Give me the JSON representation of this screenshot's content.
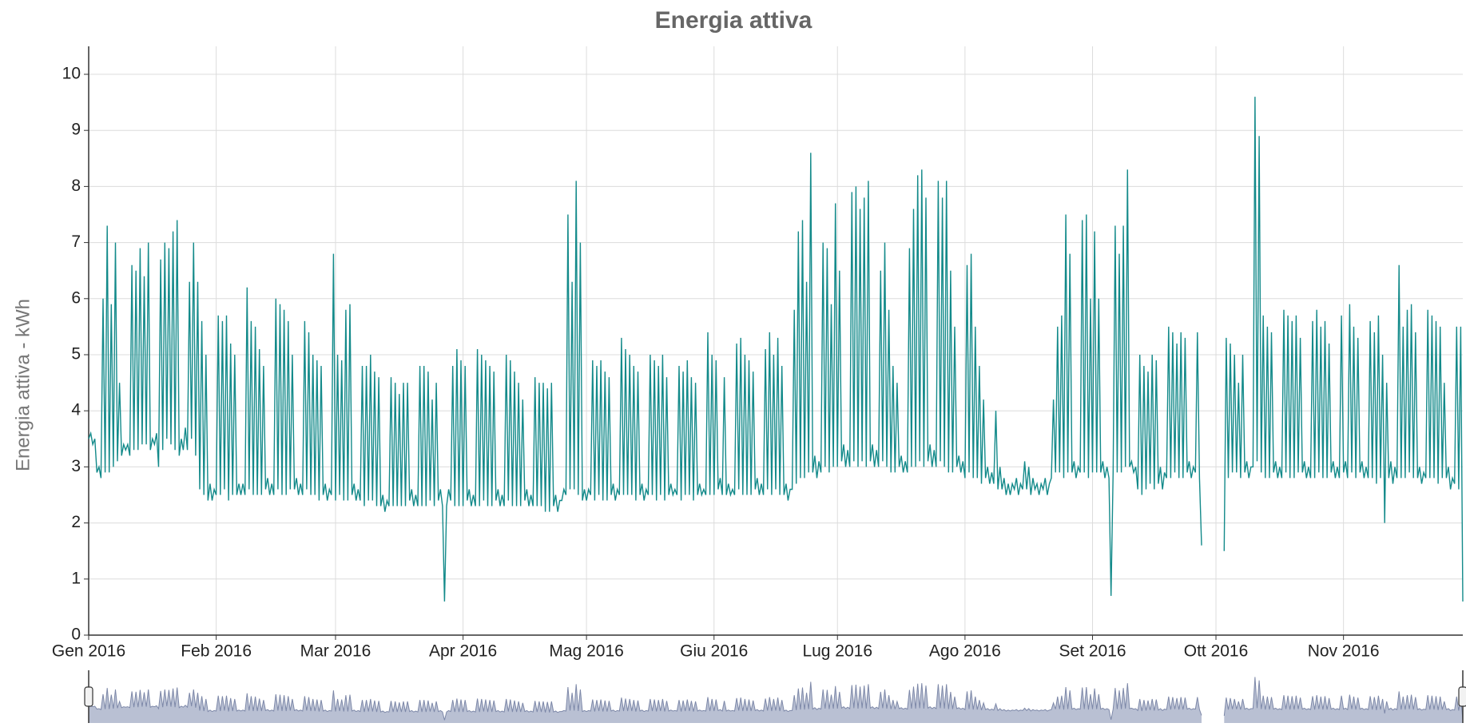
{
  "chart_data": {
    "type": "line",
    "title": "Energia attiva",
    "y_label": "Energia attiva - kWh",
    "xlim": [
      0,
      334
    ],
    "ylim": [
      0,
      10
    ],
    "grid": true,
    "yticks": [
      0,
      1,
      2,
      3,
      4,
      5,
      6,
      7,
      8,
      9,
      10
    ],
    "xticks": [
      {
        "value": 0,
        "label": "Gen 2016"
      },
      {
        "value": 31,
        "label": "Feb 2016"
      },
      {
        "value": 60,
        "label": "Mar 2016"
      },
      {
        "value": 91,
        "label": "Apr 2016"
      },
      {
        "value": 121,
        "label": "Mag 2016"
      },
      {
        "value": 152,
        "label": "Giu 2016"
      },
      {
        "value": 182,
        "label": "Lug 2016"
      },
      {
        "value": 213,
        "label": "Ago 2016"
      },
      {
        "value": 244,
        "label": "Set 2016"
      },
      {
        "value": 274,
        "label": "Ott 2016"
      },
      {
        "value": 305,
        "label": "Nov 2016"
      }
    ],
    "x": [
      0,
      0.5,
      1,
      1.5,
      2,
      2.5,
      3,
      3.5,
      4,
      4.5,
      5,
      5.5,
      6,
      6.5,
      7,
      7.5,
      8,
      8.5,
      9,
      9.5,
      10,
      10.5,
      11,
      11.5,
      12,
      12.5,
      13,
      13.5,
      14,
      14.5,
      15,
      15.5,
      16,
      16.5,
      17,
      17.5,
      18,
      18.5,
      19,
      19.5,
      20,
      20.5,
      21,
      21.5,
      22,
      22.5,
      23,
      23.5,
      24,
      24.5,
      25,
      25.5,
      26,
      26.5,
      27,
      27.5,
      28,
      28.5,
      29,
      29.5,
      30,
      30.5,
      31,
      31.5,
      32,
      32.5,
      33,
      33.5,
      34,
      34.5,
      35,
      35.5,
      36,
      36.5,
      37,
      37.5,
      38,
      38.5,
      39,
      39.5,
      40,
      40.5,
      41,
      41.5,
      42,
      42.5,
      43,
      43.5,
      44,
      44.5,
      45,
      45.5,
      46,
      46.5,
      47,
      47.5,
      48,
      48.5,
      49,
      49.5,
      50,
      50.5,
      51,
      51.5,
      52,
      52.5,
      53,
      53.5,
      54,
      54.5,
      55,
      55.5,
      56,
      56.5,
      57,
      57.5,
      58,
      58.5,
      59,
      59.5,
      60,
      60.5,
      61,
      61.5,
      62,
      62.5,
      63,
      63.5,
      64,
      64.5,
      65,
      65.5,
      66,
      66.5,
      67,
      67.5,
      68,
      68.5,
      69,
      69.5,
      70,
      70.5,
      71,
      71.5,
      72,
      72.5,
      73,
      73.5,
      74,
      74.5,
      75,
      75.5,
      76,
      76.5,
      77,
      77.5,
      78,
      78.5,
      79,
      79.5,
      80,
      80.5,
      81,
      81.5,
      82,
      82.5,
      83,
      83.5,
      84,
      84.5,
      85,
      85.5,
      86,
      86.5,
      87,
      87.5,
      88,
      88.5,
      89,
      89.5,
      90,
      90.5,
      91,
      91.5,
      92,
      92.5,
      93,
      93.5,
      94,
      94.5,
      95,
      95.5,
      96,
      96.5,
      97,
      97.5,
      98,
      98.5,
      99,
      99.5,
      100,
      100.5,
      101,
      101.5,
      102,
      102.5,
      103,
      103.5,
      104,
      104.5,
      105,
      105.5,
      106,
      106.5,
      107,
      107.5,
      108,
      108.5,
      109,
      109.5,
      110,
      110.5,
      111,
      111.5,
      112,
      112.5,
      113,
      113.5,
      114,
      114.5,
      115,
      115.5,
      116,
      116.5,
      117,
      117.5,
      118,
      118.5,
      119,
      119.5,
      120,
      120.5,
      121,
      121.5,
      122,
      122.5,
      123,
      123.5,
      124,
      124.5,
      125,
      125.5,
      126,
      126.5,
      127,
      127.5,
      128,
      128.5,
      129,
      129.5,
      130,
      130.5,
      131,
      131.5,
      132,
      132.5,
      133,
      133.5,
      134,
      134.5,
      135,
      135.5,
      136,
      136.5,
      137,
      137.5,
      138,
      138.5,
      139,
      139.5,
      140,
      140.5,
      141,
      141.5,
      142,
      142.5,
      143,
      143.5,
      144,
      144.5,
      145,
      145.5,
      146,
      146.5,
      147,
      147.5,
      148,
      148.5,
      149,
      149.5,
      150,
      150.5,
      151,
      151.5,
      152,
      152.5,
      153,
      153.5,
      154,
      154.5,
      155,
      155.5,
      156,
      156.5,
      157,
      157.5,
      158,
      158.5,
      159,
      159.5,
      160,
      160.5,
      161,
      161.5,
      162,
      162.5,
      163,
      163.5,
      164,
      164.5,
      165,
      165.5,
      166,
      166.5,
      167,
      167.5,
      168,
      168.5,
      169,
      169.5,
      170,
      170.5,
      171,
      171.5,
      172,
      172.5,
      173,
      173.5,
      174,
      174.5,
      175,
      175.5,
      176,
      176.5,
      177,
      177.5,
      178,
      178.5,
      179,
      179.5,
      180,
      180.5,
      181,
      181.5,
      182,
      182.5,
      183,
      183.5,
      184,
      184.5,
      185,
      185.5,
      186,
      186.5,
      187,
      187.5,
      188,
      188.5,
      189,
      189.5,
      190,
      190.5,
      191,
      191.5,
      192,
      192.5,
      193,
      193.5,
      194,
      194.5,
      195,
      195.5,
      196,
      196.5,
      197,
      197.5,
      198,
      198.5,
      199,
      199.5,
      200,
      200.5,
      201,
      201.5,
      202,
      202.5,
      203,
      203.5,
      204,
      204.5,
      205,
      205.5,
      206,
      206.5,
      207,
      207.5,
      208,
      208.5,
      209,
      209.5,
      210,
      210.5,
      211,
      211.5,
      212,
      212.5,
      213,
      213.5,
      214,
      214.5,
      215,
      215.5,
      216,
      216.5,
      217,
      217.5,
      218,
      218.5,
      219,
      219.5,
      220,
      220.5,
      221,
      221.5,
      222,
      222.5,
      223,
      223.5,
      224,
      224.5,
      225,
      225.5,
      226,
      226.5,
      227,
      227.5,
      228,
      228.5,
      229,
      229.5,
      230,
      230.5,
      231,
      231.5,
      232,
      232.5,
      233,
      233.5,
      234,
      234.5,
      235,
      235.5,
      236,
      236.5,
      237,
      237.5,
      238,
      238.5,
      239,
      239.5,
      240,
      240.5,
      241,
      241.5,
      242,
      242.5,
      243,
      243.5,
      244,
      244.5,
      245,
      245.5,
      246,
      246.5,
      247,
      247.5,
      248,
      248.5,
      249,
      249.5,
      250,
      250.5,
      251,
      251.5,
      252,
      252.5,
      253,
      253.5,
      254,
      254.5,
      255,
      255.5,
      256,
      256.5,
      257,
      257.5,
      258,
      258.5,
      259,
      259.5,
      260,
      260.5,
      261,
      261.5,
      262,
      262.5,
      263,
      263.5,
      264,
      264.5,
      265,
      265.5,
      266,
      266.5,
      267,
      267.5,
      268,
      268.5,
      269,
      269.5,
      270,
      270.5,
      271,
      271.5,
      272,
      272.5,
      273,
      273.5,
      274,
      274.5,
      275,
      275.5,
      276,
      276.5,
      277,
      277.5,
      278,
      278.5,
      279,
      279.5,
      280,
      280.5,
      281,
      281.5,
      282,
      282.5,
      283,
      283.5,
      284,
      284.5,
      285,
      285.5,
      286,
      286.5,
      287,
      287.5,
      288,
      288.5,
      289,
      289.5,
      290,
      290.5,
      291,
      291.5,
      292,
      292.5,
      293,
      293.5,
      294,
      294.5,
      295,
      295.5,
      296,
      296.5,
      297,
      297.5,
      298,
      298.5,
      299,
      299.5,
      300,
      300.5,
      301,
      301.5,
      302,
      302.5,
      303,
      303.5,
      304,
      304.5,
      305,
      305.5,
      306,
      306.5,
      307,
      307.5,
      308,
      308.5,
      309,
      309.5,
      310,
      310.5,
      311,
      311.5,
      312,
      312.5,
      313,
      313.5,
      314,
      314.5,
      315,
      315.5,
      316,
      316.5,
      317,
      317.5,
      318,
      318.5,
      319,
      319.5,
      320,
      320.5,
      321,
      321.5,
      322,
      322.5,
      323,
      323.5,
      324,
      324.5,
      325,
      325.5,
      326,
      326.5,
      327,
      327.5,
      328,
      328.5,
      329,
      329.5,
      330,
      330.5,
      331,
      331.5,
      332,
      332.5,
      333,
      333.5,
      334
    ],
    "series": [
      {
        "name": "Energia attiva",
        "color": "#138a8a",
        "values": [
          3.5,
          3.6,
          3.4,
          3.5,
          2.9,
          3.0,
          2.8,
          6.0,
          2.9,
          7.3,
          2.9,
          5.9,
          3.0,
          7.0,
          3.1,
          4.5,
          3.2,
          3.4,
          3.3,
          3.4,
          3.2,
          6.6,
          3.3,
          6.5,
          3.3,
          6.9,
          3.4,
          6.4,
          3.4,
          7.0,
          3.3,
          3.5,
          3.4,
          3.6,
          3.0,
          6.7,
          3.3,
          7.0,
          3.5,
          6.9,
          3.4,
          7.2,
          3.3,
          7.4,
          3.2,
          3.5,
          3.3,
          3.7,
          3.3,
          6.3,
          3.5,
          7.0,
          3.2,
          6.3,
          2.6,
          5.6,
          2.5,
          5.0,
          2.4,
          2.7,
          2.4,
          2.6,
          2.5,
          5.7,
          2.5,
          5.6,
          2.6,
          5.7,
          2.4,
          5.2,
          2.5,
          5.0,
          2.5,
          2.7,
          2.5,
          2.7,
          2.5,
          6.2,
          2.6,
          5.6,
          2.5,
          5.5,
          2.5,
          5.1,
          2.5,
          4.8,
          2.6,
          2.8,
          2.5,
          2.7,
          2.5,
          6.0,
          2.6,
          5.9,
          2.5,
          5.8,
          2.5,
          5.6,
          2.6,
          5.0,
          2.6,
          2.8,
          2.5,
          2.7,
          2.5,
          5.6,
          2.6,
          5.4,
          2.5,
          5.0,
          2.5,
          4.9,
          2.4,
          4.8,
          2.5,
          2.7,
          2.4,
          2.6,
          2.5,
          6.8,
          2.4,
          5.0,
          2.5,
          4.9,
          2.4,
          5.8,
          2.4,
          5.9,
          2.5,
          2.7,
          2.4,
          2.6,
          2.4,
          4.8,
          2.3,
          4.8,
          2.4,
          5.0,
          2.4,
          4.7,
          2.3,
          4.6,
          2.3,
          2.5,
          2.2,
          2.4,
          2.3,
          4.6,
          2.3,
          4.5,
          2.3,
          4.3,
          2.3,
          4.5,
          2.3,
          4.5,
          2.4,
          2.6,
          2.3,
          2.5,
          2.3,
          4.8,
          2.3,
          4.8,
          2.3,
          4.7,
          2.4,
          4.2,
          2.3,
          4.5,
          2.4,
          2.6,
          2.3,
          0.6,
          2.3,
          2.6,
          2.4,
          4.8,
          2.3,
          5.1,
          2.3,
          4.9,
          2.3,
          4.8,
          2.4,
          2.6,
          2.3,
          2.5,
          2.3,
          5.1,
          2.3,
          5.0,
          2.4,
          4.9,
          2.3,
          4.8,
          2.3,
          4.7,
          2.4,
          2.6,
          2.3,
          2.5,
          2.3,
          5.0,
          2.4,
          4.9,
          2.3,
          4.7,
          2.3,
          4.5,
          2.3,
          4.2,
          2.4,
          2.6,
          2.3,
          2.5,
          2.3,
          4.6,
          2.3,
          4.5,
          2.3,
          4.5,
          2.2,
          4.4,
          2.2,
          4.5,
          2.3,
          2.5,
          2.2,
          2.4,
          2.4,
          2.6,
          2.5,
          7.5,
          2.6,
          6.3,
          2.6,
          8.1,
          2.5,
          7.0,
          2.4,
          2.6,
          2.4,
          2.6,
          2.5,
          4.9,
          2.4,
          4.8,
          2.5,
          4.9,
          2.4,
          4.7,
          2.4,
          4.6,
          2.5,
          2.7,
          2.4,
          2.6,
          2.5,
          5.3,
          2.5,
          5.1,
          2.5,
          5.0,
          2.5,
          4.8,
          2.4,
          4.7,
          2.5,
          2.7,
          2.4,
          2.6,
          2.5,
          5.0,
          2.5,
          4.9,
          2.4,
          4.8,
          2.5,
          5.0,
          2.4,
          4.6,
          2.5,
          2.7,
          2.5,
          2.6,
          2.5,
          4.8,
          2.4,
          4.7,
          2.5,
          4.9,
          2.5,
          4.6,
          2.4,
          4.5,
          2.5,
          2.7,
          2.5,
          2.6,
          2.5,
          5.4,
          2.5,
          5.0,
          2.5,
          4.9,
          2.6,
          2.8,
          2.5,
          4.6,
          2.5,
          2.7,
          2.5,
          2.6,
          2.5,
          5.2,
          2.6,
          5.3,
          2.5,
          5.0,
          2.5,
          4.9,
          2.5,
          4.7,
          2.6,
          2.8,
          2.5,
          2.7,
          2.5,
          5.1,
          2.6,
          5.4,
          2.5,
          5.0,
          2.6,
          5.3,
          2.5,
          4.8,
          2.5,
          2.7,
          2.4,
          2.6,
          2.6,
          5.8,
          2.7,
          7.2,
          2.8,
          7.4,
          2.8,
          6.3,
          2.9,
          8.6,
          2.9,
          3.2,
          2.8,
          3.1,
          2.9,
          7.0,
          3.0,
          6.9,
          2.9,
          5.9,
          3.0,
          7.7,
          3.0,
          6.5,
          3.1,
          3.4,
          3.0,
          3.3,
          3.0,
          7.9,
          3.1,
          8.0,
          3.0,
          7.6,
          3.1,
          7.8,
          3.0,
          8.1,
          3.1,
          3.4,
          3.0,
          3.3,
          3.0,
          6.5,
          3.1,
          7.0,
          3.0,
          5.8,
          2.9,
          4.8,
          2.9,
          4.5,
          3.0,
          3.2,
          2.9,
          3.1,
          2.9,
          6.9,
          3.0,
          7.6,
          3.0,
          8.2,
          3.1,
          8.3,
          3.0,
          7.8,
          3.1,
          3.4,
          3.0,
          3.3,
          3.0,
          8.1,
          3.1,
          7.8,
          3.0,
          8.1,
          2.9,
          6.5,
          2.9,
          5.5,
          3.0,
          3.2,
          2.9,
          3.1,
          2.8,
          6.6,
          2.9,
          6.8,
          2.8,
          5.5,
          2.8,
          4.8,
          2.7,
          4.2,
          2.8,
          3.0,
          2.7,
          2.9,
          2.7,
          4.0,
          2.6,
          3.0,
          2.6,
          2.8,
          2.5,
          2.7,
          2.5,
          2.7,
          2.6,
          2.8,
          2.5,
          2.7,
          2.6,
          3.1,
          2.6,
          3.0,
          2.5,
          2.8,
          2.6,
          2.7,
          2.5,
          2.7,
          2.6,
          2.8,
          2.5,
          2.7,
          2.8,
          4.2,
          2.9,
          5.5,
          2.9,
          5.7,
          2.8,
          7.5,
          2.9,
          6.8,
          2.9,
          3.1,
          2.8,
          3.0,
          2.9,
          7.4,
          2.9,
          7.5,
          2.8,
          6.0,
          2.9,
          7.2,
          2.9,
          6.0,
          2.9,
          3.1,
          2.8,
          3.0,
          2.8,
          0.7,
          2.9,
          7.3,
          2.9,
          6.8,
          2.9,
          7.3,
          3.0,
          8.3,
          3.0,
          3.1,
          2.9,
          3.0,
          2.6,
          5.0,
          2.5,
          4.8,
          2.6,
          4.7,
          2.7,
          5.0,
          2.6,
          4.9,
          2.7,
          3.0,
          2.6,
          2.9,
          2.8,
          5.5,
          2.8,
          5.4,
          2.9,
          5.2,
          2.8,
          5.4,
          2.8,
          5.3,
          2.9,
          3.1,
          2.8,
          3.0,
          2.9,
          5.4,
          2.8,
          1.6,
          null,
          null,
          null,
          null,
          null,
          null,
          null,
          null,
          null,
          null,
          1.5,
          5.3,
          2.8,
          5.2,
          2.9,
          5.0,
          2.9,
          4.5,
          2.8,
          5.0,
          2.9,
          3.1,
          2.8,
          3.0,
          3.0,
          9.6,
          3.1,
          8.9,
          2.9,
          5.7,
          2.8,
          5.5,
          2.8,
          5.4,
          2.9,
          3.1,
          2.8,
          3.0,
          2.8,
          5.8,
          2.9,
          5.7,
          2.8,
          5.6,
          2.8,
          5.7,
          2.9,
          5.3,
          2.9,
          3.1,
          2.8,
          3.0,
          2.8,
          5.6,
          2.8,
          5.8,
          2.9,
          5.5,
          2.8,
          5.6,
          2.8,
          5.2,
          2.9,
          3.1,
          2.8,
          3.0,
          2.8,
          5.7,
          2.9,
          3.1,
          2.8,
          5.9,
          2.9,
          5.5,
          2.8,
          5.3,
          2.9,
          3.1,
          2.8,
          3.0,
          2.8,
          5.6,
          2.8,
          5.4,
          2.7,
          5.7,
          2.8,
          5.0,
          2.0,
          4.5,
          2.8,
          3.1,
          2.7,
          3.0,
          2.8,
          6.6,
          2.8,
          5.5,
          2.8,
          5.8,
          2.9,
          5.9,
          2.8,
          5.4,
          2.8,
          3.0,
          2.7,
          2.9,
          2.8,
          5.8,
          2.8,
          5.7,
          2.8,
          5.6,
          2.7,
          5.5,
          2.8,
          4.5,
          2.8,
          3.0,
          2.6,
          2.8,
          2.7,
          5.5,
          2.6,
          5.5,
          0.6
        ]
      }
    ]
  }
}
